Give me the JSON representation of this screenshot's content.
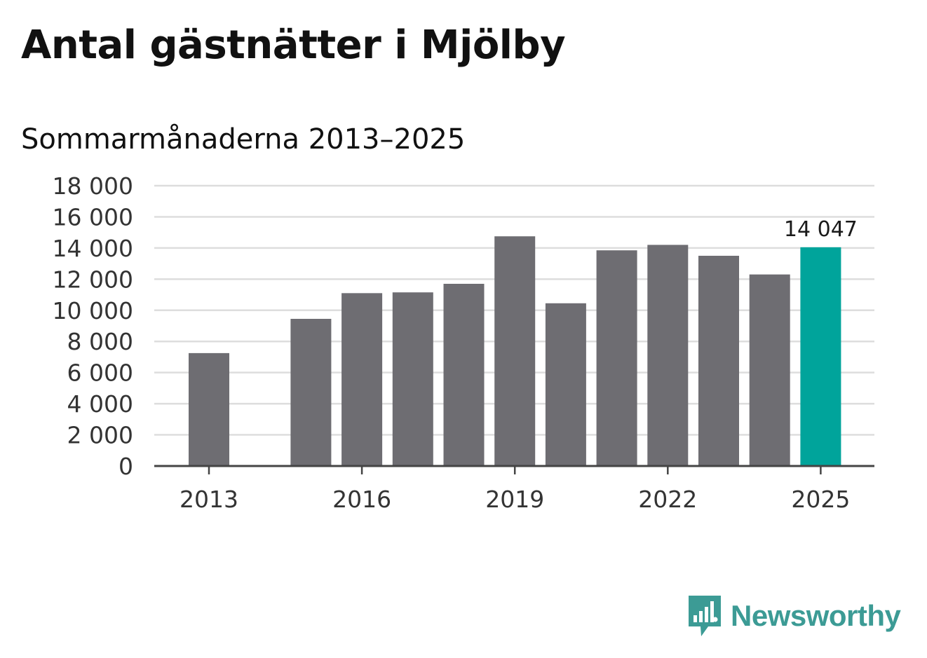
{
  "chart_data": {
    "type": "bar",
    "title": "Antal gästnätter i Mjölby",
    "subtitle": "Sommarmånaderna 2013–2025",
    "categories": [
      "2013",
      "2014",
      "2015",
      "2016",
      "2017",
      "2018",
      "2019",
      "2020",
      "2021",
      "2022",
      "2023",
      "2024",
      "2025"
    ],
    "values": [
      7250,
      null,
      9450,
      11100,
      11150,
      11700,
      14750,
      10450,
      13850,
      14200,
      13500,
      12300,
      14047
    ],
    "x_tick_labels": [
      "2013",
      "2016",
      "2019",
      "2022",
      "2025"
    ],
    "y_tick_labels": [
      "0",
      "2 000",
      "4 000",
      "6 000",
      "8 000",
      "10 000",
      "12 000",
      "14 000",
      "16 000",
      "18 000"
    ],
    "ylim": [
      0,
      18000
    ],
    "grid": true,
    "highlight": {
      "category": "2025",
      "label": "14 047"
    },
    "colors": {
      "bar": "#6e6d72",
      "highlight": "#00a49b",
      "grid": "#dddddd",
      "axis": "#444444"
    }
  },
  "logo": {
    "text": "Newsworthy",
    "color": "#3c9b95",
    "icon": "chat-bubble-bar-chart-icon"
  }
}
